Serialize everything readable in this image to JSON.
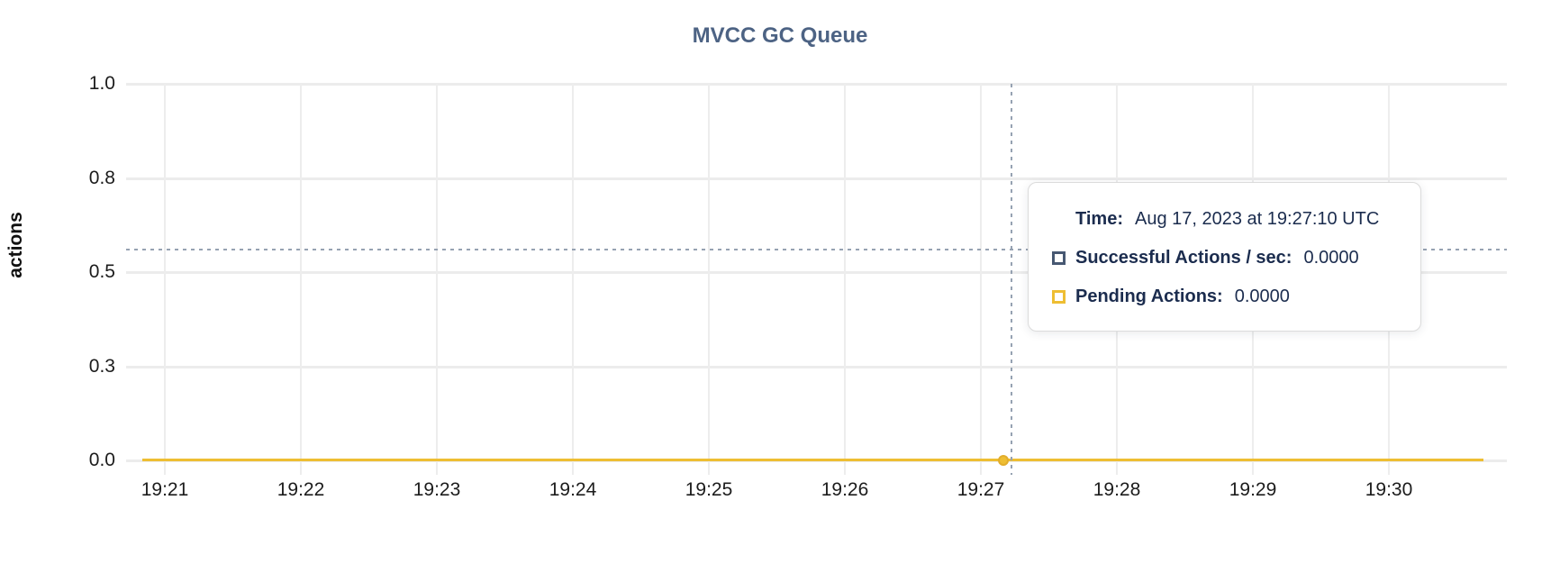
{
  "chart_data": {
    "type": "line",
    "title": "MVCC GC Queue",
    "xlabel": "",
    "ylabel": "actions",
    "x_ticks": [
      "19:21",
      "19:22",
      "19:23",
      "19:24",
      "19:25",
      "19:26",
      "19:27",
      "19:28",
      "19:29",
      "19:30"
    ],
    "y_ticks": [
      "0.0",
      "0.3",
      "0.5",
      "0.8",
      "1.0"
    ],
    "ylim": [
      0.0,
      1.0
    ],
    "grid": true,
    "legend_position": "tooltip-only",
    "series": [
      {
        "name": "Successful Actions / sec",
        "color": "#475872",
        "values": [
          0,
          0,
          0,
          0,
          0,
          0,
          0,
          0,
          0,
          0
        ]
      },
      {
        "name": "Pending Actions",
        "color": "#eebe33",
        "values": [
          0,
          0,
          0,
          0,
          0,
          0,
          0,
          0,
          0,
          0
        ]
      }
    ],
    "hover_point": {
      "time": "19:27:10",
      "value": 0.0
    }
  },
  "tooltip": {
    "time_label": "Time:",
    "time_value": "Aug 17, 2023 at 19:27:10 UTC",
    "rows": [
      {
        "label": "Successful Actions / sec:",
        "value": "0.0000"
      },
      {
        "label": "Pending Actions:",
        "value": "0.0000"
      }
    ]
  },
  "colors": {
    "title": "#4d6384",
    "tooltip_text": "#1b2c4e",
    "gridline": "#ececec",
    "crosshair": "#96a2b2",
    "pending_line": "#eebe33",
    "successful_line": "#475872"
  }
}
